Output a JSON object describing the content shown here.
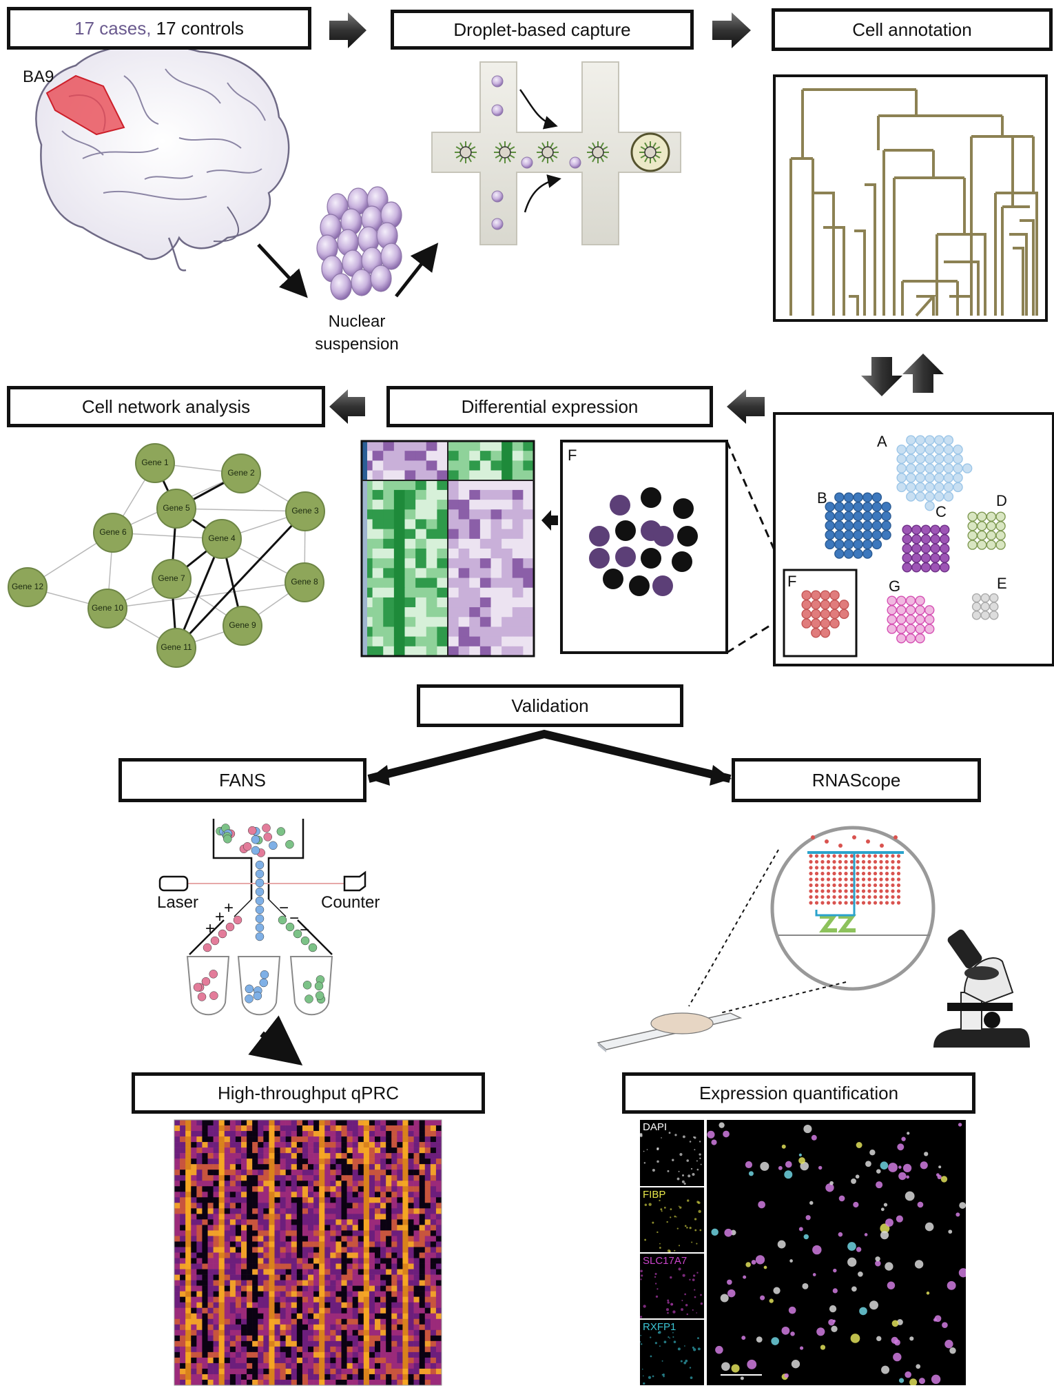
{
  "header": {
    "cases_text": "17 cases,",
    "controls_text": "17 controls"
  },
  "steps": {
    "droplet_capture": "Droplet-based capture",
    "cell_annotation": "Cell annotation",
    "cell_network": "Cell network analysis",
    "differential_expression": "Differential expression",
    "validation": "Validation",
    "fans": "FANS",
    "rnascope": "RNAScope",
    "qprc": "High-throughput qPRC",
    "expression_quant": "Expression quantification"
  },
  "brain": {
    "region_label": "BA9"
  },
  "nuclear_suspension": {
    "line1": "Nuclear",
    "line2": "suspension"
  },
  "clusters": {
    "A": {
      "label": "A",
      "color": "#9cc6e8"
    },
    "B": {
      "label": "B",
      "color": "#3d78bd"
    },
    "C": {
      "label": "C",
      "color": "#9d55b5"
    },
    "D": {
      "label": "D",
      "color": "#a9c07a"
    },
    "E": {
      "label": "E",
      "color": "#aaaaaa"
    },
    "F": {
      "label": "F",
      "color": "#e07c7c"
    },
    "G": {
      "label": "G",
      "color": "#d54fb3"
    }
  },
  "zoom_panel": {
    "label": "F"
  },
  "network": {
    "genes": [
      "Gene 1",
      "Gene 2",
      "Gene 3",
      "Gene 4",
      "Gene 5",
      "Gene 6",
      "Gene 7",
      "Gene 8",
      "Gene 9",
      "Gene 10",
      "Gene 11",
      "Gene 12"
    ],
    "node_color": "#8ea65a"
  },
  "fans": {
    "laser": "Laser",
    "counter": "Counter"
  },
  "rnascope_panels": {
    "dapi": {
      "label": "DAPI",
      "color": "#ffffff"
    },
    "fibp": {
      "label": "FIBP",
      "color": "#e8e84a"
    },
    "slc17a7": {
      "label": "SLC17A7",
      "color": "#cc44cc"
    },
    "rxfp1": {
      "label": "RXFP1",
      "color": "#3bc6d6"
    }
  }
}
